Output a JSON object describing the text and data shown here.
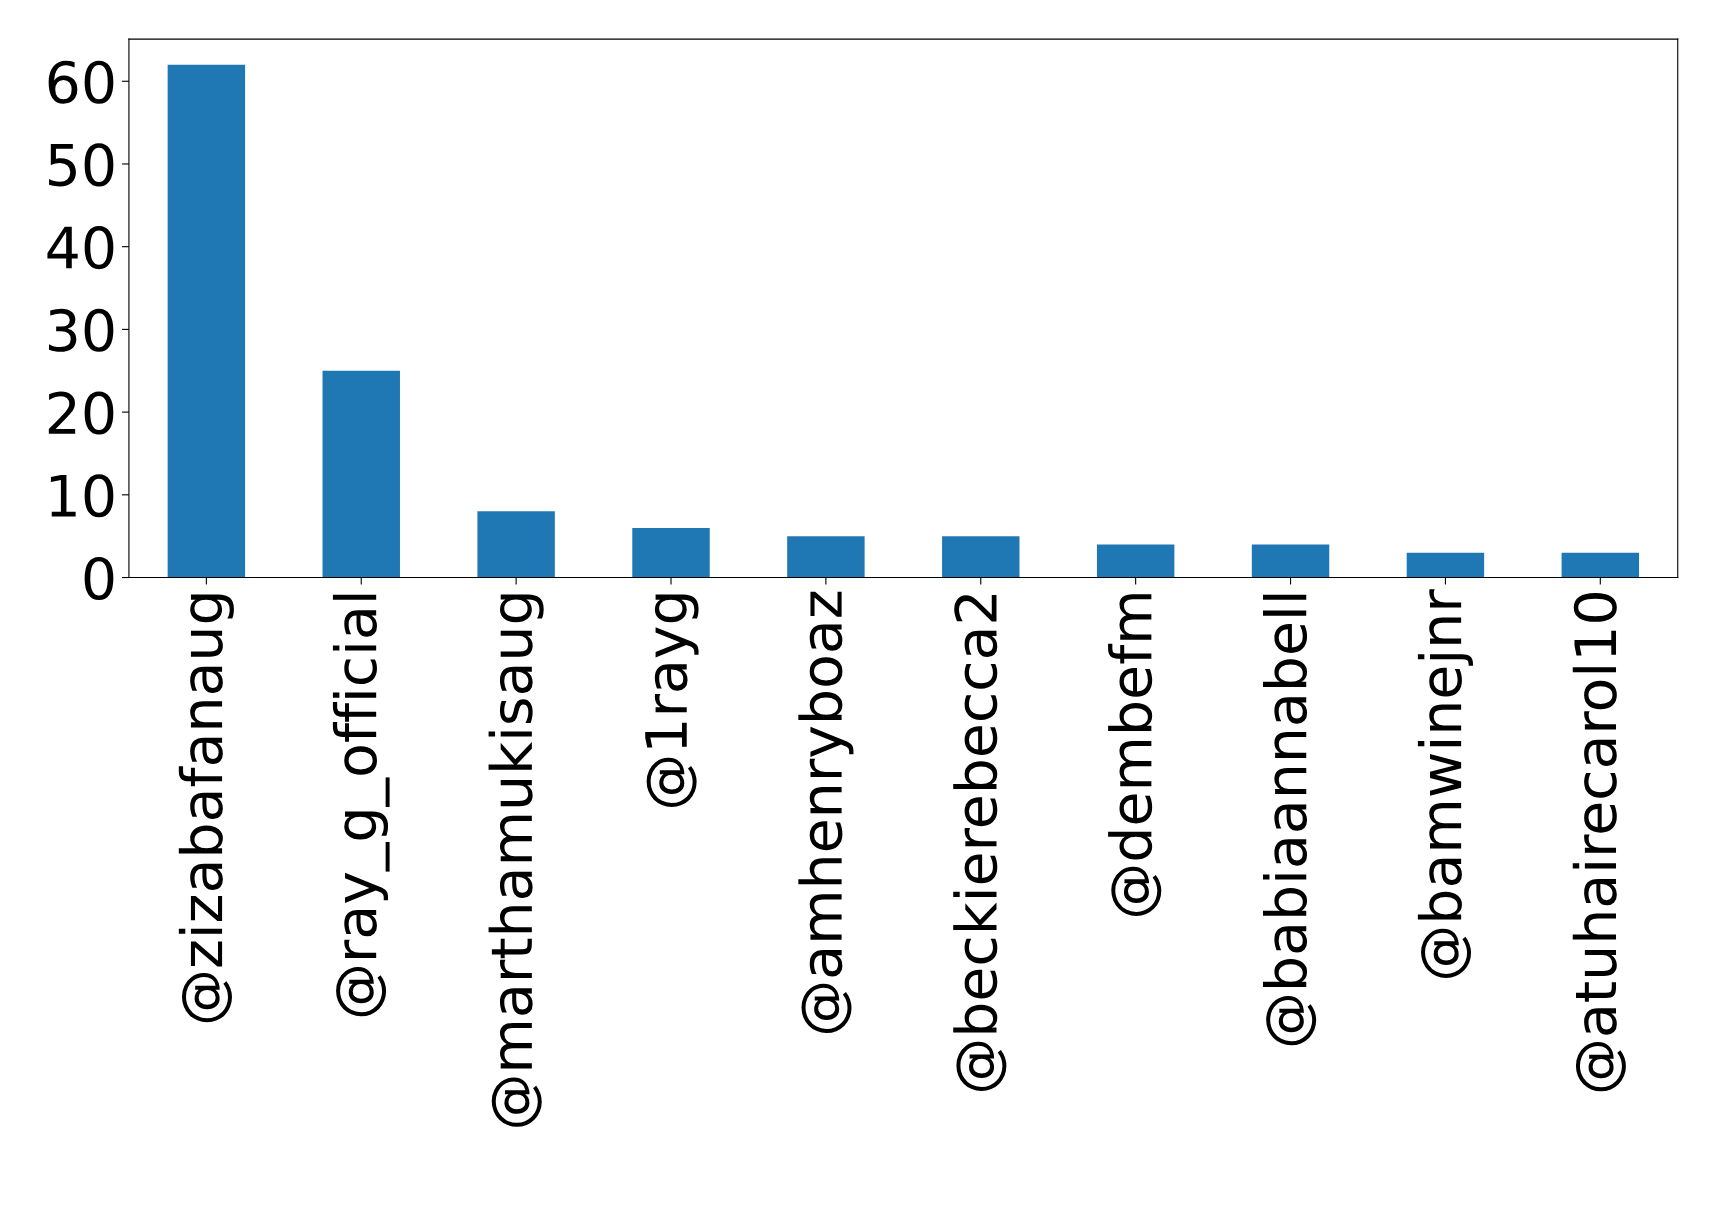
{
  "chart_data": {
    "type": "bar",
    "categories": [
      "@zizabafanaug",
      "@ray_g_official",
      "@marthamukisaug",
      "@1rayg",
      "@amhenryboaz",
      "@beckierebecca2",
      "@dembefm",
      "@babiaannabell",
      "@bamwinejnr",
      "@atuhairecarol10"
    ],
    "values": [
      62,
      25,
      8,
      6,
      5,
      5,
      4,
      4,
      3,
      3
    ],
    "color": "#1f77b4",
    "ylim": [
      0,
      65.1
    ],
    "yticks": [
      0,
      10,
      20,
      30,
      40,
      50,
      60
    ],
    "grid": false
  }
}
